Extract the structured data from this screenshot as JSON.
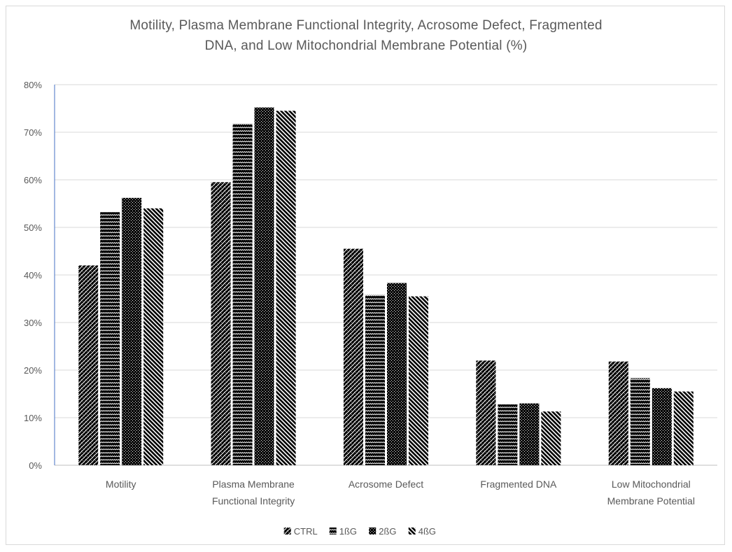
{
  "chart_data": {
    "type": "bar",
    "title_lines": [
      "Motility, Plasma Membrane  Functional Integrity, Acrosome Defect, Fragmented",
      "DNA, and Low Mitochondrial  Membrane  Potential (%)"
    ],
    "categories": [
      [
        "Motility"
      ],
      [
        "Plasma Membrane",
        "Functional Integrity"
      ],
      [
        "Acrosome Defect"
      ],
      [
        "Fragmented DNA"
      ],
      [
        "Low Mitochondrial",
        "Membrane Potential"
      ]
    ],
    "series": [
      {
        "name": "CTRL",
        "pattern": "diag-check",
        "values": [
          42,
          59.5,
          45.5,
          22,
          21.8
        ]
      },
      {
        "name": "1ßG",
        "pattern": "wave",
        "values": [
          53.2,
          71.8,
          35.8,
          12.8,
          18.3
        ]
      },
      {
        "name": "2ßG",
        "pattern": "dots",
        "values": [
          56.2,
          75.2,
          38.3,
          13,
          16.2
        ]
      },
      {
        "name": "4ßG",
        "pattern": "diag-stripe",
        "values": [
          54,
          74.5,
          35.5,
          11.3,
          15.5
        ]
      }
    ],
    "ylim": [
      0,
      80
    ],
    "yticks": [
      "0%",
      "10%",
      "20%",
      "30%",
      "40%",
      "50%",
      "60%",
      "70%",
      "80%"
    ],
    "grid": true,
    "legend_position": "bottom",
    "colors": {
      "bar": "#000000",
      "grid": "#d9d9d9",
      "axis": "#4472c4",
      "text": "#595959"
    }
  }
}
